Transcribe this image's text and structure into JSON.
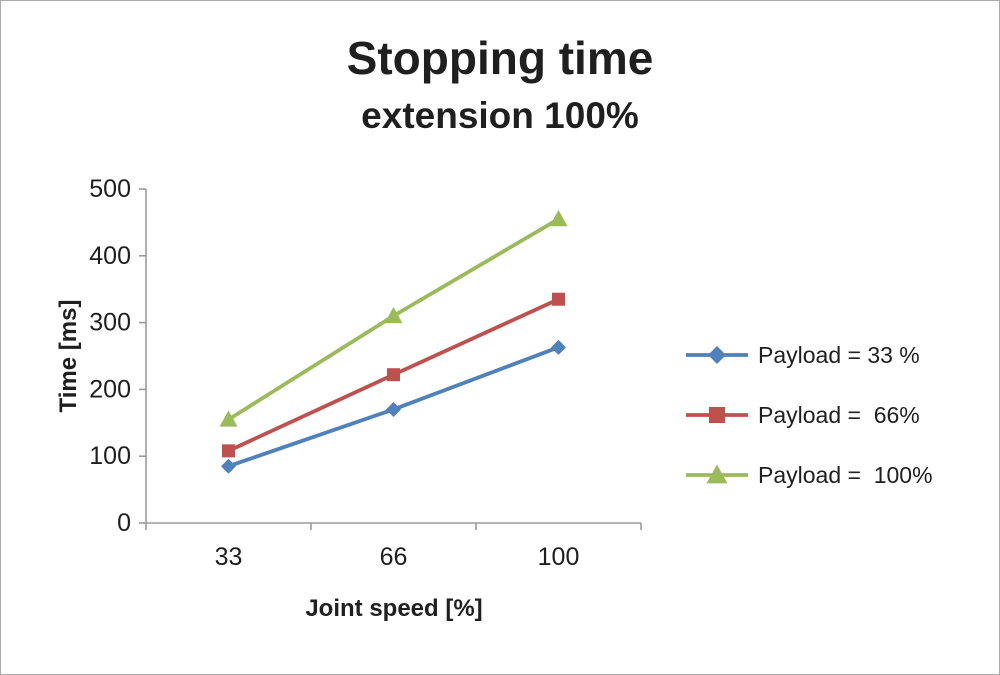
{
  "window": {
    "background": "#ffffff",
    "border_color": "#ababab"
  },
  "chart_data": {
    "type": "line",
    "title": "Stopping time",
    "subtitle": "extension 100%",
    "xlabel": "Joint speed [%]",
    "ylabel": "Time [ms]",
    "categories": [
      "33",
      "66",
      "100"
    ],
    "yticks": [
      0,
      100,
      200,
      300,
      400,
      500
    ],
    "ylim": [
      0,
      500
    ],
    "grid": false,
    "legend_position": "right",
    "axis_color": "#9b9b9b",
    "text_color": "#1f1f1f",
    "series": [
      {
        "name": "Payload = 33 %",
        "marker": "diamond",
        "color": "#4F81BD",
        "values": [
          85,
          170,
          263
        ]
      },
      {
        "name": "Payload =  66%",
        "marker": "square",
        "color": "#C0504D",
        "values": [
          108,
          222,
          335
        ]
      },
      {
        "name": "Payload =  100%",
        "marker": "triangle",
        "color": "#9BBB59",
        "values": [
          155,
          310,
          455
        ]
      }
    ]
  }
}
